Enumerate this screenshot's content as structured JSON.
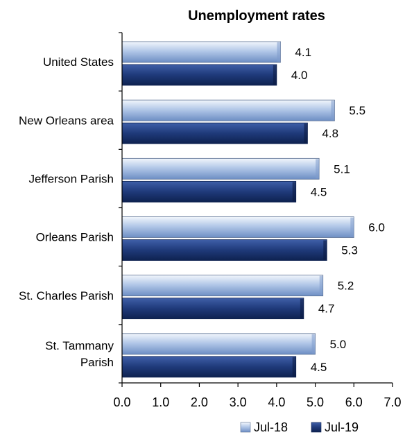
{
  "chart_data": {
    "type": "bar",
    "orientation": "horizontal",
    "title": "Unemployment rates",
    "xlabel": "",
    "ylabel": "",
    "xlim": [
      0,
      7
    ],
    "xticks": [
      "0.0",
      "1.0",
      "2.0",
      "3.0",
      "4.0",
      "5.0",
      "6.0",
      "7.0"
    ],
    "grid": false,
    "legend_position": "bottom-right",
    "categories": [
      [
        "United States"
      ],
      [
        "New Orleans area"
      ],
      [
        "Jefferson Parish"
      ],
      [
        "Orleans Parish"
      ],
      [
        "St. Charles Parish"
      ],
      [
        "St. Tammany",
        "Parish"
      ]
    ],
    "series": [
      {
        "name": "Jul-18",
        "color": "#a9c0e2",
        "values": [
          4.1,
          5.5,
          5.1,
          6.0,
          5.2,
          5.0
        ],
        "labels": [
          "4.1",
          "5.5",
          "5.1",
          "6.0",
          "5.2",
          "5.0"
        ]
      },
      {
        "name": "Jul-19",
        "color": "#1f3a7a",
        "values": [
          4.0,
          4.8,
          4.5,
          5.3,
          4.7,
          4.5
        ],
        "labels": [
          "4.0",
          "4.8",
          "4.5",
          "5.3",
          "4.7",
          "4.5"
        ]
      }
    ]
  }
}
